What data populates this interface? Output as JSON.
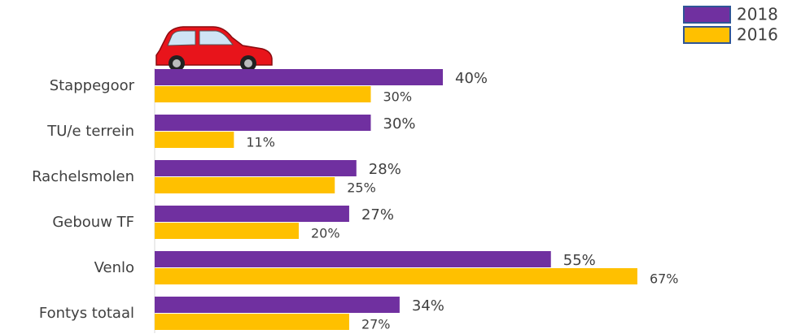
{
  "chart_data": {
    "type": "bar",
    "orientation": "horizontal",
    "categories": [
      "Stappegoor",
      "TU/e terrein",
      "Rachelsmolen",
      "Gebouw TF",
      "Venlo",
      "Fontys totaal"
    ],
    "series": [
      {
        "name": "2018",
        "color": "#7030a0",
        "values": [
          40,
          30,
          28,
          27,
          55,
          34
        ],
        "value_labels": [
          "40%",
          "30%",
          "28%",
          "27%",
          "55%",
          "34%"
        ]
      },
      {
        "name": "2016",
        "color": "#ffc000",
        "values": [
          30,
          11,
          25,
          20,
          67,
          27
        ],
        "value_labels": [
          "30%",
          "11%",
          "25%",
          "20%",
          "67%",
          "27%"
        ]
      }
    ],
    "legend": "top-right"
  }
}
